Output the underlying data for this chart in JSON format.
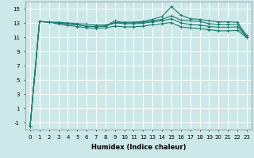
{
  "title": "",
  "xlabel": "Humidex (Indice chaleur)",
  "ylabel": "",
  "background_color": "#cce8e8",
  "grid_color": "#ffffff",
  "line_color": "#1a7a6e",
  "xlim": [
    -0.5,
    23.5
  ],
  "ylim": [
    -2,
    16
  ],
  "yticks": [
    -1,
    1,
    3,
    5,
    7,
    9,
    11,
    13,
    15
  ],
  "xticks": [
    0,
    1,
    2,
    3,
    4,
    5,
    6,
    7,
    8,
    9,
    10,
    11,
    12,
    13,
    14,
    15,
    16,
    17,
    18,
    19,
    20,
    21,
    22,
    23
  ],
  "series": [
    [
      -1.5,
      13.2,
      13.1,
      13.0,
      12.85,
      12.75,
      12.5,
      12.5,
      12.55,
      13.3,
      13.0,
      13.0,
      13.1,
      13.3,
      13.5,
      14.0,
      13.4,
      13.3,
      13.2,
      12.9,
      12.8,
      12.8,
      12.85,
      11.0
    ],
    [
      -1.5,
      13.2,
      13.1,
      13.1,
      13.0,
      12.9,
      12.85,
      12.7,
      12.7,
      13.05,
      13.1,
      13.1,
      13.2,
      13.5,
      13.9,
      15.3,
      14.1,
      13.6,
      13.5,
      13.3,
      13.15,
      13.15,
      13.1,
      11.2
    ],
    [
      -1.5,
      13.2,
      13.1,
      13.0,
      12.85,
      12.75,
      12.55,
      12.5,
      12.55,
      13.0,
      12.9,
      12.9,
      12.95,
      13.15,
      13.3,
      13.6,
      13.0,
      12.8,
      12.7,
      12.5,
      12.4,
      12.4,
      12.45,
      11.0
    ],
    [
      -1.5,
      13.2,
      13.1,
      12.85,
      12.65,
      12.5,
      12.3,
      12.25,
      12.3,
      12.55,
      12.45,
      12.45,
      12.55,
      12.75,
      12.9,
      13.05,
      12.45,
      12.3,
      12.2,
      12.05,
      11.9,
      11.9,
      11.95,
      10.95
    ]
  ],
  "marker": "+",
  "marker_size": 3,
  "linewidth": 0.8,
  "tick_fontsize": 5,
  "xlabel_fontsize": 6,
  "xlabel_fontweight": "bold"
}
